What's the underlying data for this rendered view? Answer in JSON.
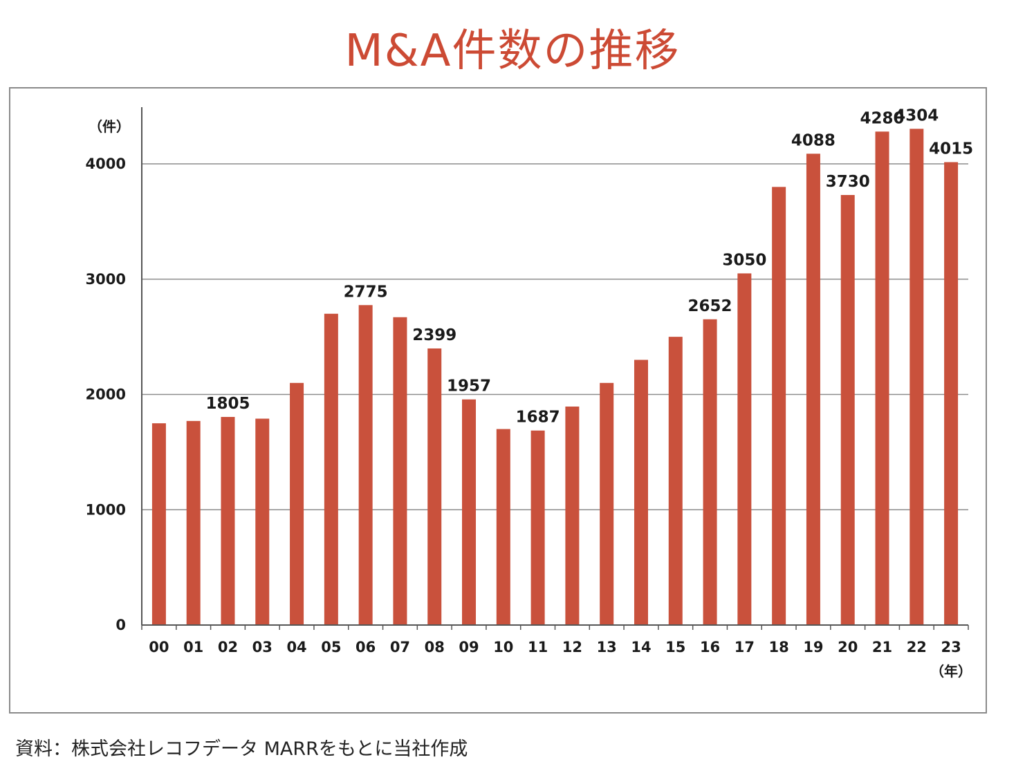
{
  "chart_data": {
    "type": "bar",
    "title": "M&A件数の推移",
    "ylabel": "（件）",
    "xlabel": "（年）",
    "ylim": [
      0,
      4500
    ],
    "yticks": [
      0,
      1000,
      2000,
      3000,
      4000
    ],
    "ytick_labels": [
      "0",
      "1000",
      "2000",
      "3000",
      "4000"
    ],
    "grid": true,
    "bar_color": "#c9513c",
    "categories": [
      "00",
      "01",
      "02",
      "03",
      "04",
      "05",
      "06",
      "07",
      "08",
      "09",
      "10",
      "11",
      "12",
      "13",
      "14",
      "15",
      "16",
      "17",
      "18",
      "19",
      "20",
      "21",
      "22",
      "23"
    ],
    "values": [
      1750,
      1770,
      1805,
      1790,
      2100,
      2700,
      2775,
      2670,
      2399,
      1957,
      1700,
      1687,
      1895,
      2100,
      2300,
      2500,
      2652,
      3050,
      3800,
      4088,
      3730,
      4280,
      4304,
      4015
    ],
    "value_labels": [
      "",
      "",
      "1805",
      "",
      "",
      "",
      "2775",
      "",
      "2399",
      "1957",
      "",
      "1687",
      "",
      "",
      "",
      "",
      "2652",
      "3050",
      "",
      "4088",
      "3730",
      "4280",
      "4304",
      "4015"
    ]
  },
  "source": "資料：株式会社レコフデータ MARRをもとに当社作成"
}
